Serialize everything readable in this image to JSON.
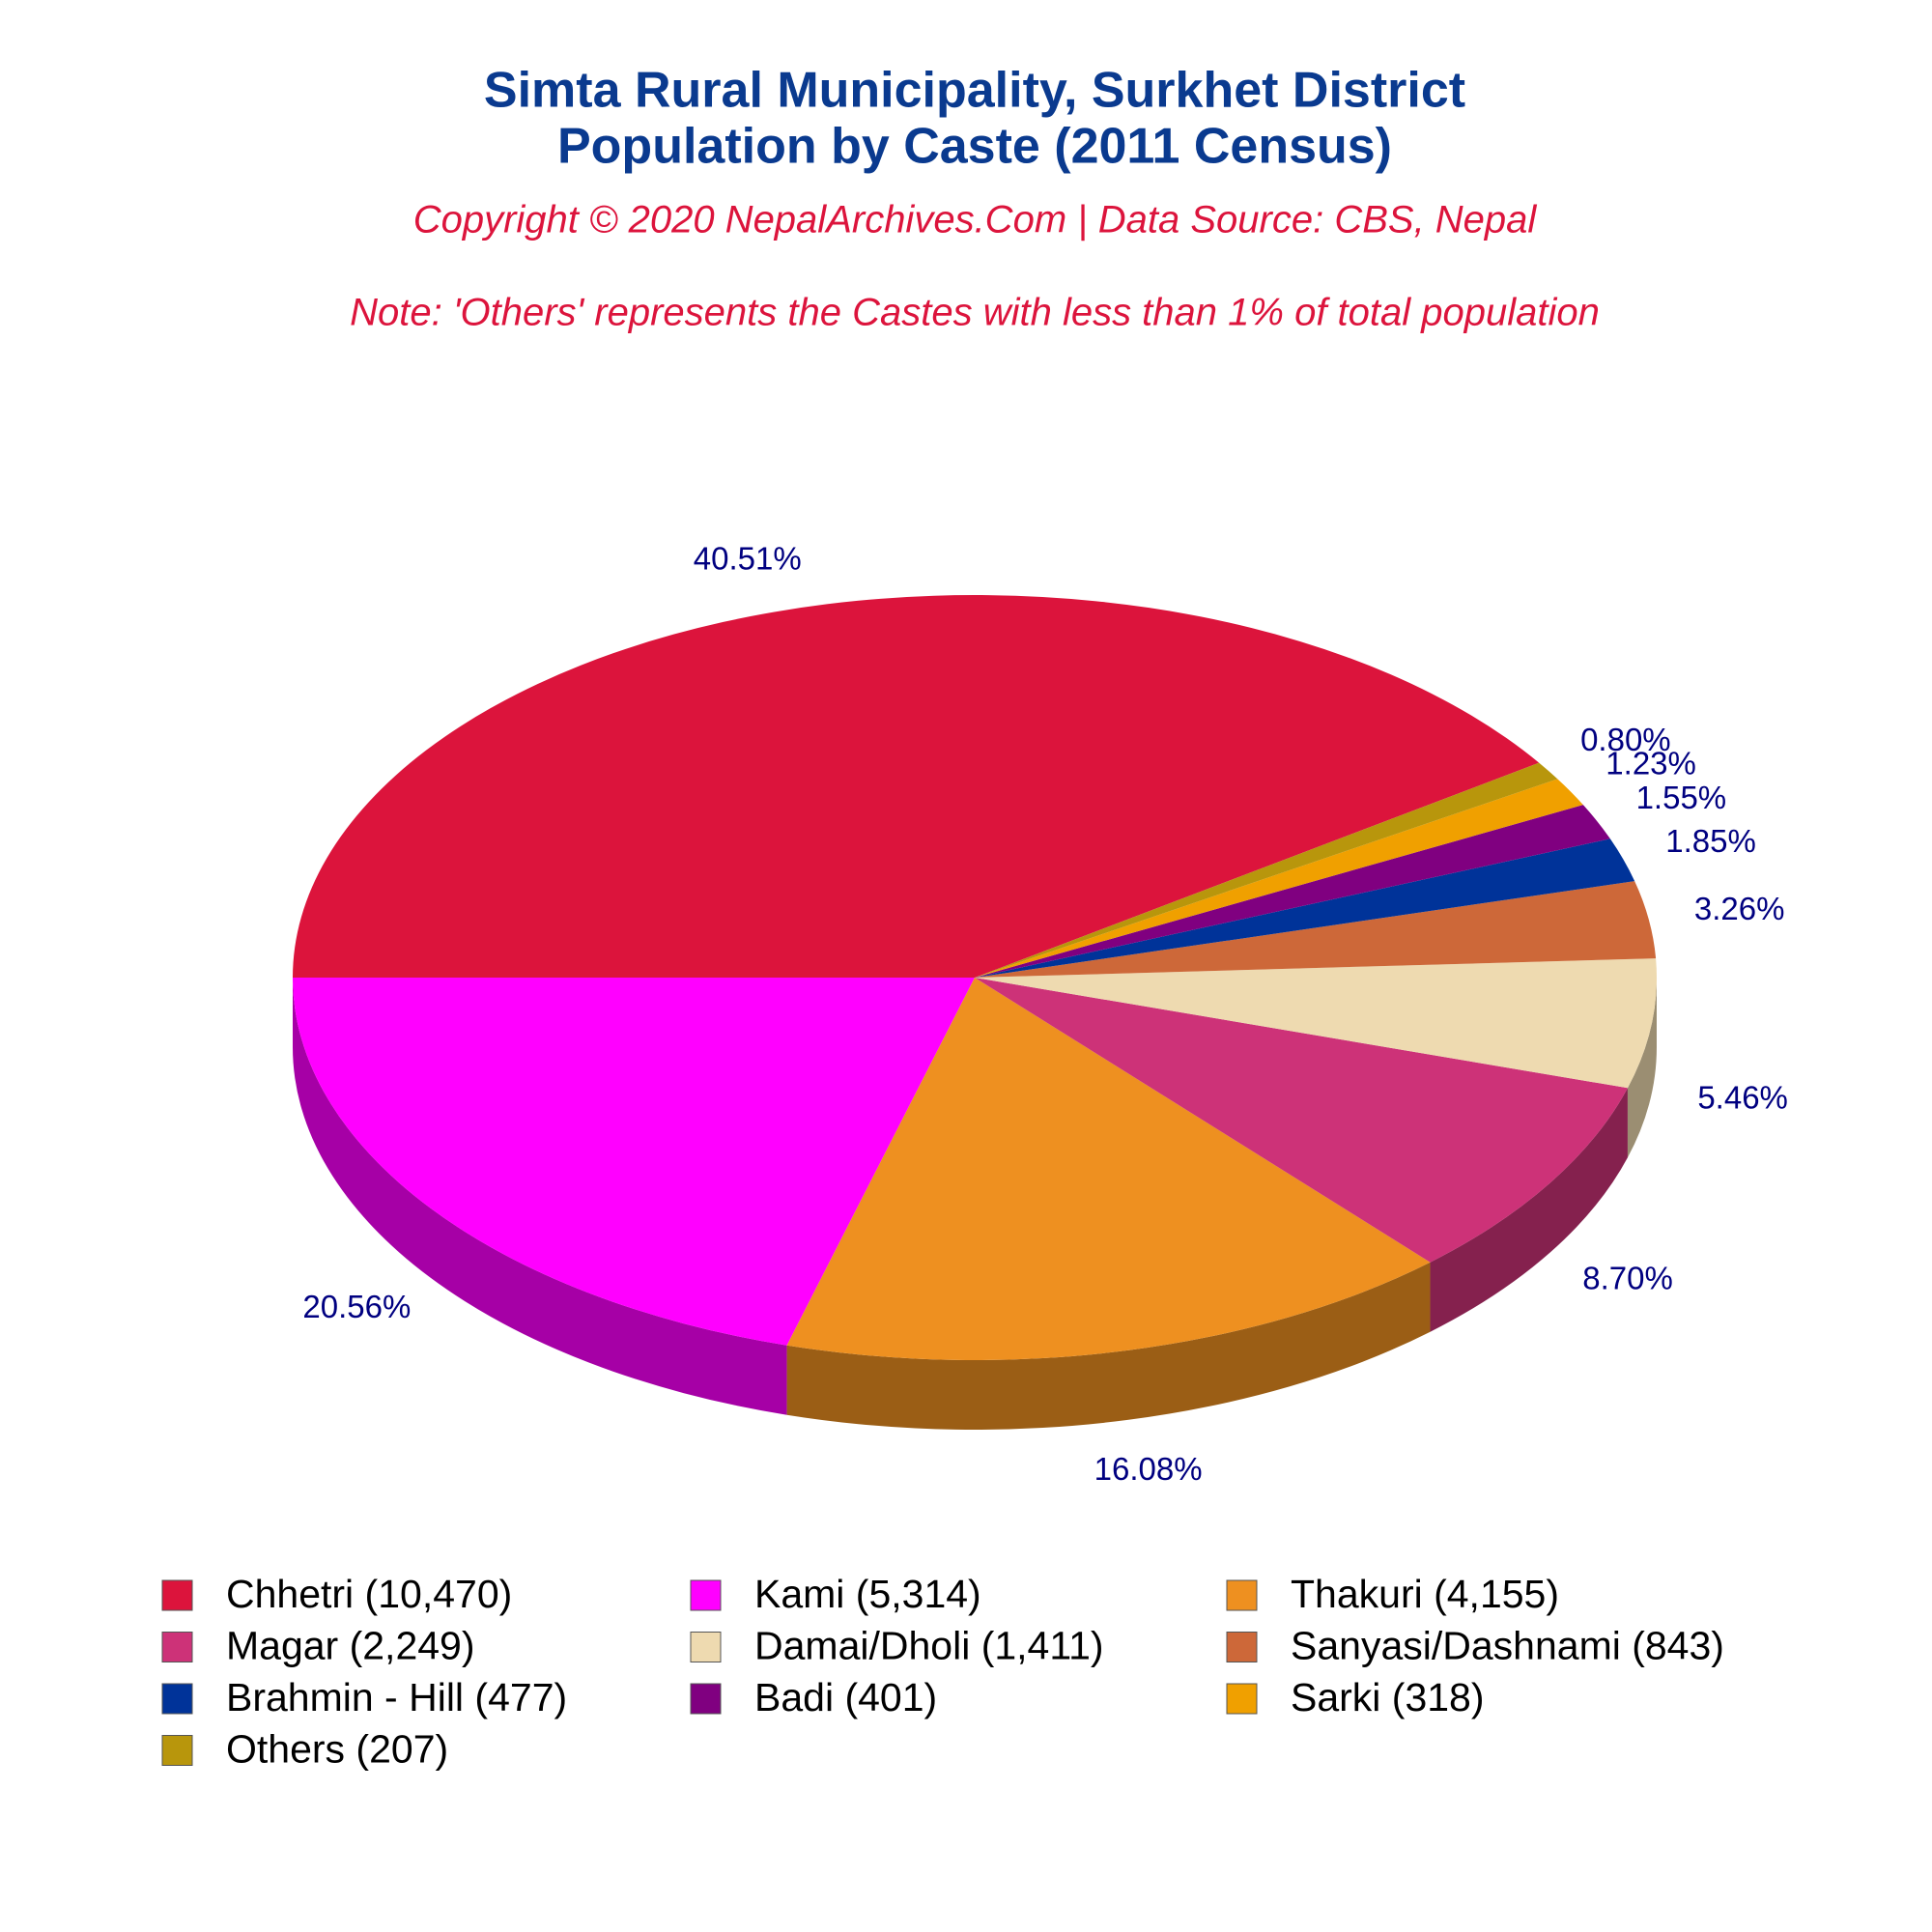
{
  "chart_data": {
    "type": "pie",
    "title": "Simta Rural Municipality, Surkhet District",
    "subtitle": "Population by Caste (2011 Census)",
    "source": "Copyright © 2020 NepalArchives.Com | Data Source: CBS, Nepal",
    "note": "Note: 'Others' represents the Castes with less than 1% of total population",
    "categories": [
      "Chhetri (10,470)",
      "Kami (5,314)",
      "Thakuri (4,155)",
      "Magar (2,249)",
      "Damai/Dholi (1,411)",
      "Sanyasi/Dashnami (843)",
      "Brahmin - Hill (477)",
      "Badi (401)",
      "Sarki (318)",
      "Others (207)"
    ],
    "values": [
      40.51,
      20.56,
      16.08,
      8.7,
      5.46,
      3.26,
      1.85,
      1.55,
      1.23,
      0.8
    ],
    "value_labels": [
      "40.51%",
      "20.56%",
      "16.08%",
      "8.70%",
      "5.46%",
      "3.26%",
      "1.85%",
      "1.55%",
      "1.23%",
      "0.80%"
    ],
    "colors": [
      "#dc143c",
      "#ff00ff",
      "#ee9020",
      "#cd3278",
      "#eedab0",
      "#cd6839",
      "#003399",
      "#800080",
      "#f0a000",
      "#b8960c"
    ],
    "legend": "bottom"
  }
}
